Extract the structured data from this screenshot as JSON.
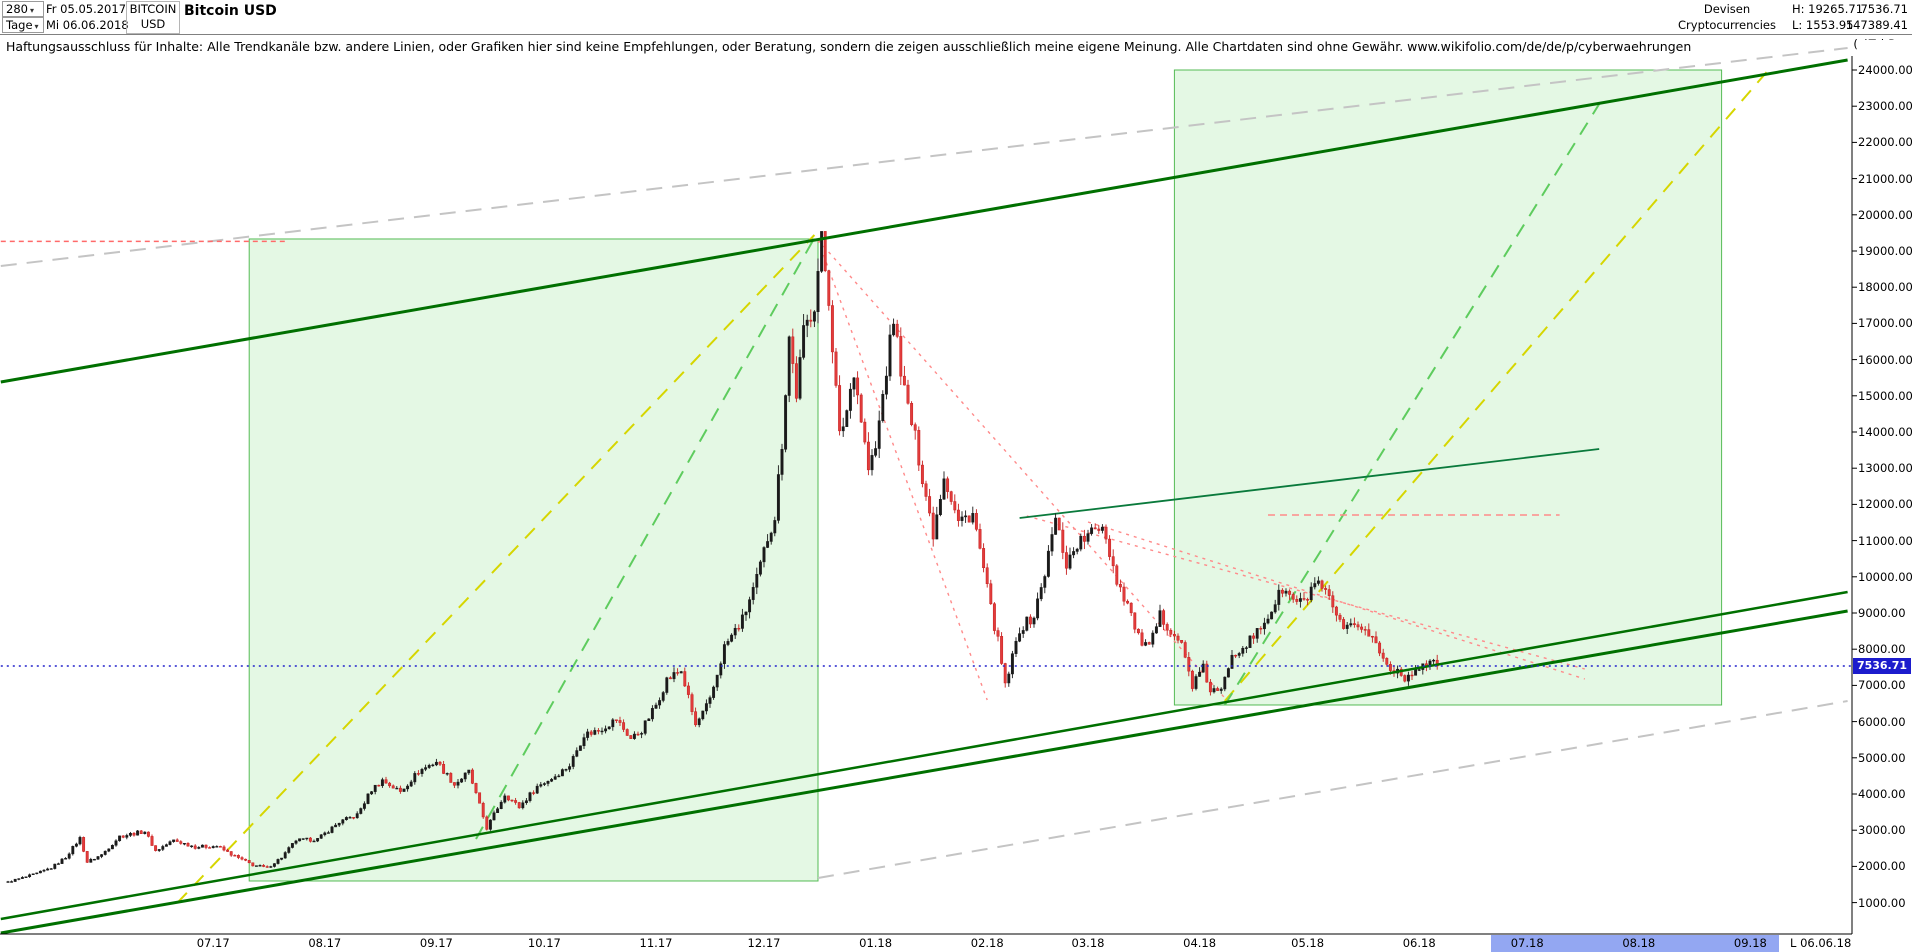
{
  "window": {
    "copyright": "(c)Tai-Pan"
  },
  "icons": {
    "dropdown": "▾"
  },
  "header": {
    "period_value": "280",
    "interval_value": "Tage",
    "date_from": "Fr 05.05.2017",
    "date_to": "Mi 06.06.2018",
    "symbol": "BITCOIN",
    "currency": "USD",
    "title": "Bitcoin USD",
    "category_line1": "Devisen",
    "category_line2": "Cryptocurrencies",
    "high_label": "H: 19265.71",
    "low_label": "L: 1553.95",
    "last_price_text": "7536.71",
    "secondary_value": "147389.41"
  },
  "disclaimer": {
    "text": "Haftungsausschluss für Inhalte: Alle Trendkanäle bzw. andere Linien, oder Grafiken hier sind keine Empfehlungen, oder Beratung, sondern die zeigen ausschließlich meine eigene Meinung. Alle Chartdaten sind ohne Gewähr.  www.wikifolio.com/de/de/p/cyberwaehrungen"
  },
  "chart_data": {
    "type": "candlestick",
    "title": "Bitcoin USD",
    "period_high": 19265.71,
    "period_low": 1553.95,
    "last_price": 7536.71,
    "last_price_label": "7536.71",
    "grid": false,
    "y_axis": {
      "min": 1000,
      "max": 24000,
      "step": 1000,
      "decimals": 2
    },
    "x_axis": {
      "start_date": "05.05.2017",
      "end_date": "06.06.2018",
      "end_label": "L 06.06.18",
      "labels": [
        {
          "label": "07.17",
          "day": 57
        },
        {
          "label": "08.17",
          "day": 88
        },
        {
          "label": "09.17",
          "day": 119
        },
        {
          "label": "10.17",
          "day": 149
        },
        {
          "label": "11.17",
          "day": 180
        },
        {
          "label": "12.17",
          "day": 210
        },
        {
          "label": "01.18",
          "day": 241
        },
        {
          "label": "02.18",
          "day": 272
        },
        {
          "label": "03.18",
          "day": 300
        },
        {
          "label": "04.18",
          "day": 331
        },
        {
          "label": "05.18",
          "day": 361
        },
        {
          "label": "06.18",
          "day": 392
        },
        {
          "label": "07.18",
          "day": 422
        },
        {
          "label": "08.18",
          "day": 453
        },
        {
          "label": "09.18",
          "day": 484
        }
      ],
      "future_band_days": [
        412,
        492
      ]
    },
    "price_path_day_price": [
      [
        0,
        1580
      ],
      [
        4,
        1680
      ],
      [
        8,
        1800
      ],
      [
        12,
        1960
      ],
      [
        16,
        2250
      ],
      [
        20,
        2780
      ],
      [
        22,
        2120
      ],
      [
        26,
        2320
      ],
      [
        31,
        2830
      ],
      [
        38,
        2970
      ],
      [
        41,
        2430
      ],
      [
        46,
        2720
      ],
      [
        52,
        2540
      ],
      [
        58,
        2560
      ],
      [
        63,
        2280
      ],
      [
        68,
        2040
      ],
      [
        72,
        1960
      ],
      [
        76,
        2250
      ],
      [
        80,
        2720
      ],
      [
        86,
        2750
      ],
      [
        92,
        3220
      ],
      [
        97,
        3420
      ],
      [
        101,
        4120
      ],
      [
        104,
        4380
      ],
      [
        109,
        4060
      ],
      [
        114,
        4620
      ],
      [
        119,
        4900
      ],
      [
        124,
        4260
      ],
      [
        128,
        4610
      ],
      [
        133,
        3060
      ],
      [
        138,
        3990
      ],
      [
        142,
        3640
      ],
      [
        147,
        4210
      ],
      [
        151,
        4430
      ],
      [
        156,
        4790
      ],
      [
        160,
        5640
      ],
      [
        164,
        5760
      ],
      [
        169,
        6060
      ],
      [
        173,
        5530
      ],
      [
        176,
        5760
      ],
      [
        180,
        6460
      ],
      [
        183,
        7160
      ],
      [
        187,
        7410
      ],
      [
        191,
        5890
      ],
      [
        195,
        6570
      ],
      [
        199,
        8060
      ],
      [
        204,
        8810
      ],
      [
        208,
        9910
      ],
      [
        211,
        11080
      ],
      [
        213,
        11690
      ],
      [
        215,
        13720
      ],
      [
        217,
        16640
      ],
      [
        219,
        15060
      ],
      [
        221,
        16710
      ],
      [
        224,
        17600
      ],
      [
        226,
        19280
      ],
      [
        228,
        17720
      ],
      [
        231,
        13860
      ],
      [
        233,
        14610
      ],
      [
        235,
        15760
      ],
      [
        239,
        12960
      ],
      [
        241,
        13510
      ],
      [
        243,
        15010
      ],
      [
        246,
        17140
      ],
      [
        249,
        15110
      ],
      [
        252,
        13810
      ],
      [
        257,
        11210
      ],
      [
        260,
        12840
      ],
      [
        264,
        11510
      ],
      [
        268,
        11760
      ],
      [
        271,
        10210
      ],
      [
        273,
        9110
      ],
      [
        275,
        8210
      ],
      [
        277,
        6960
      ],
      [
        281,
        8560
      ],
      [
        285,
        8910
      ],
      [
        288,
        10110
      ],
      [
        291,
        11610
      ],
      [
        294,
        10360
      ],
      [
        297,
        10910
      ],
      [
        300,
        11110
      ],
      [
        304,
        11480
      ],
      [
        308,
        9910
      ],
      [
        311,
        9260
      ],
      [
        314,
        8310
      ],
      [
        317,
        8010
      ],
      [
        320,
        8910
      ],
      [
        323,
        8560
      ],
      [
        326,
        8110
      ],
      [
        329,
        7010
      ],
      [
        332,
        7460
      ],
      [
        334,
        6860
      ],
      [
        337,
        6810
      ],
      [
        340,
        7910
      ],
      [
        342,
        8010
      ],
      [
        346,
        8310
      ],
      [
        350,
        8910
      ],
      [
        354,
        9660
      ],
      [
        357,
        9360
      ],
      [
        360,
        9260
      ],
      [
        363,
        9840
      ],
      [
        367,
        9360
      ],
      [
        371,
        8460
      ],
      [
        375,
        8710
      ],
      [
        379,
        8310
      ],
      [
        383,
        7560
      ],
      [
        386,
        7410
      ],
      [
        389,
        7160
      ],
      [
        391,
        7510
      ],
      [
        394,
        7610
      ],
      [
        397,
        7536.71
      ]
    ],
    "annotations": {
      "boxes": [
        {
          "name": "trend-zone-2017",
          "d1": 67,
          "d2": 225,
          "p1": 1597,
          "p2": 19332
        },
        {
          "name": "trend-zone-2018",
          "d1": 324,
          "d2": 476,
          "p1": 6459,
          "p2": 24000
        }
      ],
      "lines": [
        {
          "name": "gray-channel-top",
          "p": [
            [
              -2,
              18586
            ],
            [
              511,
              24608
            ]
          ],
          "color": "#c4c4c4",
          "w": 2,
          "dash": "16 10",
          "layer": "back"
        },
        {
          "name": "gray-support",
          "p": [
            [
              225,
              1680
            ],
            [
              511,
              6569
            ]
          ],
          "color": "#c4c4c4",
          "w": 2,
          "dash": "16 10",
          "layer": "back"
        },
        {
          "name": "fan-yellow-left",
          "p": [
            [
              47,
              990
            ],
            [
              224,
              19442
            ]
          ],
          "color": "#d6d600",
          "w": 2,
          "dash": "14 10",
          "layer": "back"
        },
        {
          "name": "fan-yellow-right",
          "p": [
            [
              338,
              6569
            ],
            [
              489,
              24000
            ]
          ],
          "color": "#d6d600",
          "w": 2,
          "dash": "14 10",
          "layer": "back"
        },
        {
          "name": "fan-green-left",
          "p": [
            [
              130,
              2757
            ],
            [
              224,
              19359
            ]
          ],
          "color": "#5ecc5e",
          "w": 2,
          "dash": "14 10",
          "layer": "back"
        },
        {
          "name": "fan-green-right",
          "p": [
            [
              338,
              6459
            ],
            [
              442,
              23061
            ]
          ],
          "color": "#5ecc5e",
          "w": 2,
          "dash": "14 10",
          "layer": "back"
        },
        {
          "name": "red-fan-to-feb-low",
          "p": [
            [
              225,
              19304
            ],
            [
              272,
              6597
            ]
          ],
          "color": "#ff8a8a",
          "w": 1.4,
          "dash": "3 5",
          "layer": "back"
        },
        {
          "name": "red-fan-to-apr-low",
          "p": [
            [
              225,
              19304
            ],
            [
              339,
              6541
            ]
          ],
          "color": "#ff8a8a",
          "w": 1.4,
          "dash": "3 5",
          "layer": "back"
        },
        {
          "name": "red-resistance-1",
          "p": [
            [
              283,
              11680
            ],
            [
              438,
              7453
            ]
          ],
          "color": "#ff8a8a",
          "w": 1.4,
          "dash": "3 5",
          "layer": "back"
        },
        {
          "name": "red-resistance-2",
          "p": [
            [
              300,
              11514
            ],
            [
              438,
              7177
            ]
          ],
          "color": "#ff8a8a",
          "w": 1.4,
          "dash": "3 5",
          "layer": "back"
        },
        {
          "name": "high-level-line",
          "p": [
            [
              -2,
              19266
            ],
            [
              77,
              19266
            ]
          ],
          "color": "#ff6a6a",
          "w": 1.4,
          "dash": "5 4",
          "layer": "back"
        },
        {
          "name": "resistance-11700",
          "p": [
            [
              350,
              11707
            ],
            [
              431,
              11707
            ]
          ],
          "color": "#ff8a8a",
          "w": 1.6,
          "dash": "7 5",
          "layer": "back"
        },
        {
          "name": "minor-green-trendline",
          "p": [
            [
              281,
              11624
            ],
            [
              442,
              13530
            ]
          ],
          "color": "#0a7a3c",
          "w": 1.8,
          "layer": "back"
        },
        {
          "name": "channel-top",
          "p": [
            [
              -2,
              15381
            ],
            [
              511,
              24276
            ]
          ],
          "color": "#007000",
          "w": 3,
          "layer": "front"
        },
        {
          "name": "channel-bottom",
          "p": [
            [
              -2,
              160
            ],
            [
              511,
              9055
            ]
          ],
          "color": "#007000",
          "w": 3,
          "layer": "front"
        },
        {
          "name": "support-line",
          "p": [
            [
              -2,
              548
            ],
            [
              511,
              9580
            ]
          ],
          "color": "#007000",
          "w": 2.5,
          "layer": "front"
        },
        {
          "name": "current-price-line",
          "p": [
            [
              -2,
              7536.71
            ],
            [
              512,
              7536.71
            ]
          ],
          "color": "#2222cc",
          "w": 1.5,
          "dash": "2 4",
          "layer": "front"
        }
      ]
    }
  }
}
